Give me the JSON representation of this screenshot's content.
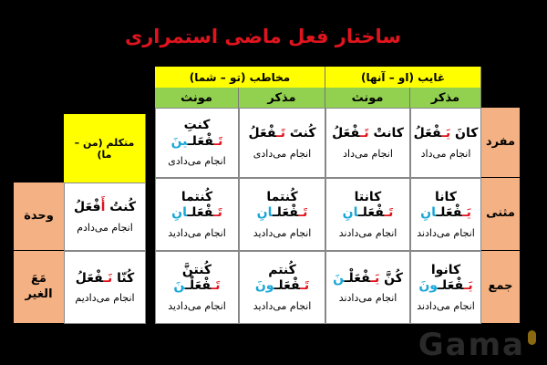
{
  "title": "ساختار فعل ماضی استمراری",
  "colors": {
    "prefix": "#e0141e",
    "suffix": "#1aa7d8",
    "header": "#ffff00",
    "subheader": "#92d050",
    "label": "#f4b183"
  },
  "headers": {
    "ghayeb": "غایب (او – آنها)",
    "mokhatab": "مخاطب (تو – شما)",
    "motakallem": "متکلم (من – ما)"
  },
  "subheaders": [
    "مذکر",
    "مونث",
    "مذکر",
    "مونث"
  ],
  "rows": [
    {
      "label": "مفرد",
      "cells": [
        {
          "verb": [
            [
              "كانَ ",
              "#000"
            ],
            [
              "يَـ",
              "r"
            ],
            [
              "فْعَلُ",
              "#000"
            ]
          ],
          "meaning": "انجام می‌داد"
        },
        {
          "verb": [
            [
              "كانتْ ",
              "#000"
            ],
            [
              "تَـ",
              "r"
            ],
            [
              "فْعَلُ",
              "#000"
            ]
          ],
          "meaning": "انجام می‌داد"
        },
        {
          "verb": [
            [
              "كُنتَ ",
              "#000"
            ],
            [
              "تَـ",
              "r"
            ],
            [
              "فْعَلُ",
              "#000"
            ]
          ],
          "meaning": "انجام می‌دادی"
        },
        {
          "verb": [
            [
              "كنتِ ",
              "#000"
            ],
            [
              "تَـ",
              "r"
            ],
            [
              "فْعَلـ",
              "#000"
            ],
            [
              "ينَ",
              "b"
            ]
          ],
          "meaning": "انجام می‌دادی"
        }
      ]
    },
    {
      "label": "مثنی",
      "cells": [
        {
          "verb": [
            [
              "كانا ",
              "#000"
            ],
            [
              "يَـ",
              "r"
            ],
            [
              "فْعَلـ",
              "#000"
            ],
            [
              "انِ",
              "b"
            ]
          ],
          "meaning": "انجام می‌دادند"
        },
        {
          "verb": [
            [
              "كانتا ",
              "#000"
            ],
            [
              "تَـ",
              "r"
            ],
            [
              "فْعَلـ",
              "#000"
            ],
            [
              "انِ",
              "b"
            ]
          ],
          "meaning": "انجام می‌دادند"
        },
        {
          "verb": [
            [
              "كُنتما ",
              "#000"
            ],
            [
              "تَـ",
              "r"
            ],
            [
              "فْعَلـ",
              "#000"
            ],
            [
              "انِ",
              "b"
            ]
          ],
          "meaning": "انجام می‌دادید"
        },
        {
          "verb": [
            [
              "كُنتما ",
              "#000"
            ],
            [
              "تَـ",
              "r"
            ],
            [
              "فْعَلـ",
              "#000"
            ],
            [
              "انِ",
              "b"
            ]
          ],
          "meaning": "انجام می‌دادید"
        }
      ]
    },
    {
      "label": "جمع",
      "cells": [
        {
          "verb": [
            [
              "كانوا ",
              "#000"
            ],
            [
              "يَـ",
              "r"
            ],
            [
              "فْعَلـ",
              "#000"
            ],
            [
              "ونَ",
              "b"
            ]
          ],
          "meaning": "انجام می‌دادند"
        },
        {
          "verb": [
            [
              "كُنَّ ",
              "#000"
            ],
            [
              "يَـ",
              "r"
            ],
            [
              "فْعَلْـ",
              "#000"
            ],
            [
              "نَ",
              "b"
            ]
          ],
          "meaning": "انجام می‌دادند"
        },
        {
          "verb": [
            [
              "كُنتم ",
              "#000"
            ],
            [
              "تَـ",
              "r"
            ],
            [
              "فْعَلـ",
              "#000"
            ],
            [
              "ونَ",
              "b"
            ]
          ],
          "meaning": "انجام می‌دادید"
        },
        {
          "verb": [
            [
              "كُنتنَّ ",
              "#000"
            ],
            [
              "تَـ",
              "r"
            ],
            [
              "فْعَلْـ",
              "#000"
            ],
            [
              "نَ",
              "b"
            ]
          ],
          "meaning": "انجام می‌دادید"
        }
      ]
    }
  ],
  "motakallem": [
    {
      "label": "وحدة",
      "verb": [
        [
          "كُنتُ ",
          "#000"
        ],
        [
          "أَ",
          "r"
        ],
        [
          "فْعَلُ",
          "#000"
        ]
      ],
      "meaning": "انجام می‌دادم"
    },
    {
      "label": "مَعَ الغير",
      "verb": [
        [
          "كُنّا ",
          "#000"
        ],
        [
          "نَـ",
          "r"
        ],
        [
          "فْعَلُ",
          "#000"
        ]
      ],
      "meaning": "انجام می‌دادیم"
    }
  ],
  "watermark": "Gama"
}
